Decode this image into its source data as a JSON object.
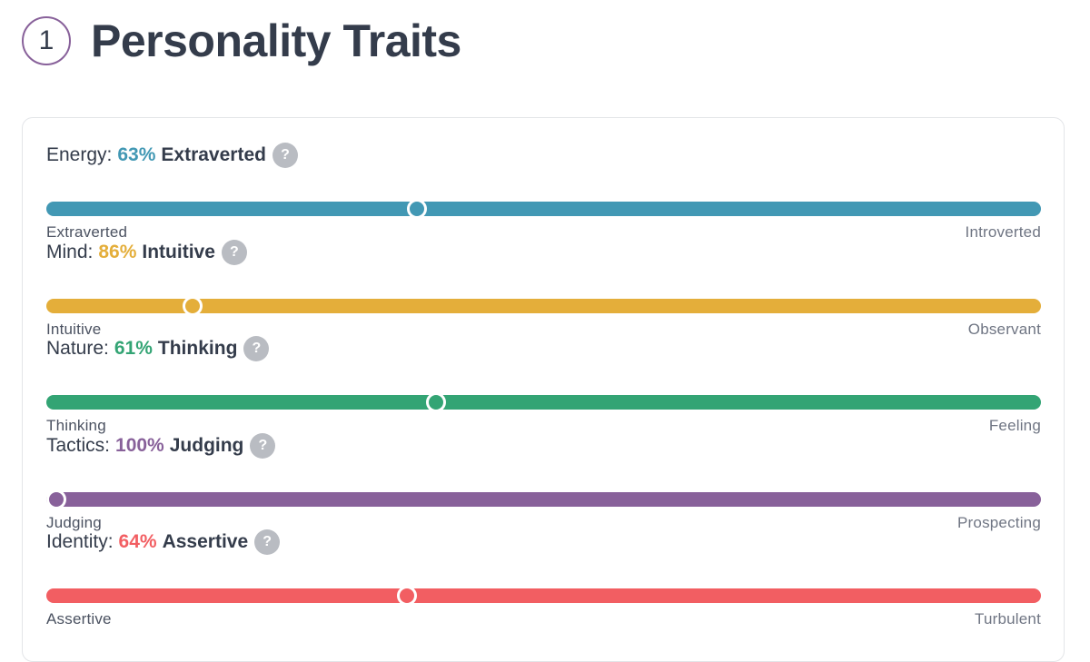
{
  "header": {
    "step_number": "1",
    "title": "Personality Traits"
  },
  "traits": [
    {
      "category": "Energy:",
      "percent_label": "63%",
      "trait_name": "Extraverted",
      "help_glyph": "?",
      "left_label": "Extraverted",
      "right_label": "Introverted",
      "knob_fraction": 0.37,
      "color": "#4298b4"
    },
    {
      "category": "Mind:",
      "percent_label": "86%",
      "trait_name": "Intuitive",
      "help_glyph": "?",
      "left_label": "Intuitive",
      "right_label": "Observant",
      "knob_fraction": 0.14,
      "color": "#e4ae3a"
    },
    {
      "category": "Nature:",
      "percent_label": "61%",
      "trait_name": "Thinking",
      "help_glyph": "?",
      "left_label": "Thinking",
      "right_label": "Feeling",
      "knob_fraction": 0.39,
      "color": "#33a474"
    },
    {
      "category": "Tactics:",
      "percent_label": "100%",
      "trait_name": "Judging",
      "help_glyph": "?",
      "left_label": "Judging",
      "right_label": "Prospecting",
      "knob_fraction": 0.0,
      "color": "#88619a"
    },
    {
      "category": "Identity:",
      "percent_label": "64%",
      "trait_name": "Assertive",
      "help_glyph": "?",
      "left_label": "Assertive",
      "right_label": "Turbulent",
      "knob_fraction": 0.36,
      "color": "#f25e62"
    }
  ]
}
